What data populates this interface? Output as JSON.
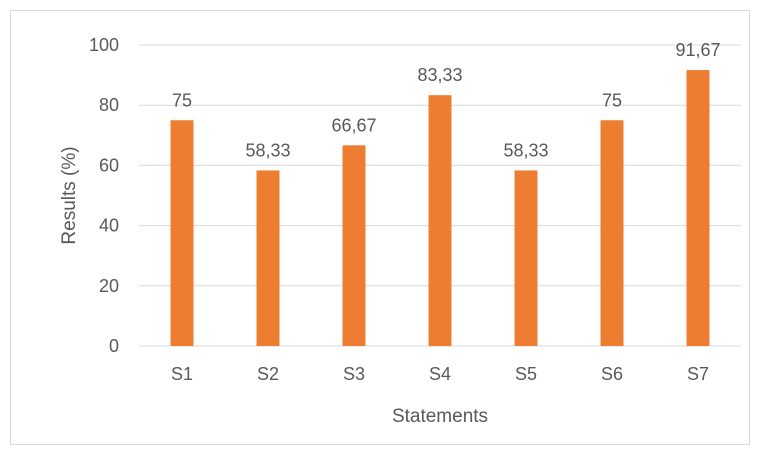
{
  "chart_data": {
    "type": "bar",
    "title": "",
    "xlabel": "Statements",
    "ylabel": "Results (%)",
    "ylim": [
      0,
      100
    ],
    "yticks": [
      0,
      20,
      40,
      60,
      80,
      100
    ],
    "grid": true,
    "legend": "none",
    "categories": [
      "S1",
      "S2",
      "S3",
      "S4",
      "S5",
      "S6",
      "S7"
    ],
    "values": [
      75,
      58.33,
      66.67,
      83.33,
      58.33,
      75,
      91.67
    ],
    "data_labels": [
      "75",
      "58,33",
      "66,67",
      "83,33",
      "58,33",
      "75",
      "91,67"
    ],
    "bar_color": "#ED7D31",
    "grid_color": "#D9D9D9",
    "text_color": "#595959"
  }
}
